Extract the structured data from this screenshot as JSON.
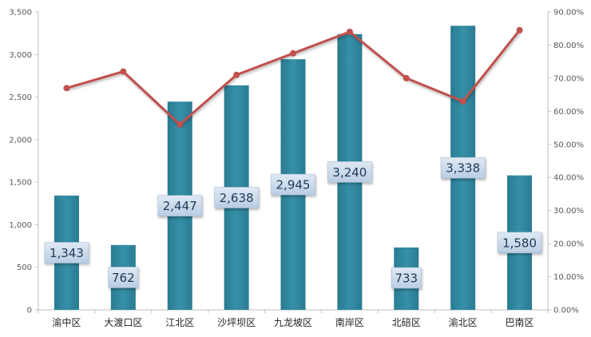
{
  "chart_data": {
    "type": "bar",
    "categories": [
      "渝中区",
      "大渡口区",
      "江北区",
      "沙坪坝区",
      "九龙坡区",
      "南岸区",
      "北碚区",
      "渝北区",
      "巴南区"
    ],
    "series": [
      {
        "type": "bar",
        "axis": "left",
        "values": [
          1343,
          762,
          2447,
          2638,
          2945,
          3240,
          733,
          3338,
          1580
        ],
        "data_labels": [
          "1,343",
          "762",
          "2,447",
          "2,638",
          "2,945",
          "3,240",
          "733",
          "3,338",
          "1,580"
        ],
        "color": "#31859c"
      },
      {
        "type": "line",
        "axis": "right",
        "values": [
          0.67,
          0.72,
          0.56,
          0.71,
          0.775,
          0.84,
          0.7,
          0.63,
          0.845
        ],
        "color": "#c0504d"
      }
    ],
    "y_left": {
      "range": [
        0,
        3500
      ],
      "ticks": [
        0,
        500,
        1000,
        1500,
        2000,
        2500,
        3000,
        3500
      ],
      "tick_labels": [
        "0",
        "500",
        "1,000",
        "1,500",
        "2,000",
        "2,500",
        "3,000",
        "3,500"
      ]
    },
    "y_right": {
      "range": [
        0,
        0.9
      ],
      "ticks": [
        0,
        0.1,
        0.2,
        0.3,
        0.4,
        0.5,
        0.6,
        0.7,
        0.8,
        0.9
      ],
      "tick_labels": [
        "0.00%",
        "10.00%",
        "20.00%",
        "30.00%",
        "40.00%",
        "50.00%",
        "60.00%",
        "70.00%",
        "80.00%",
        "90.00%"
      ]
    },
    "title": "",
    "xlabel": "",
    "ylabel": "",
    "grid": false,
    "legend": "none"
  }
}
